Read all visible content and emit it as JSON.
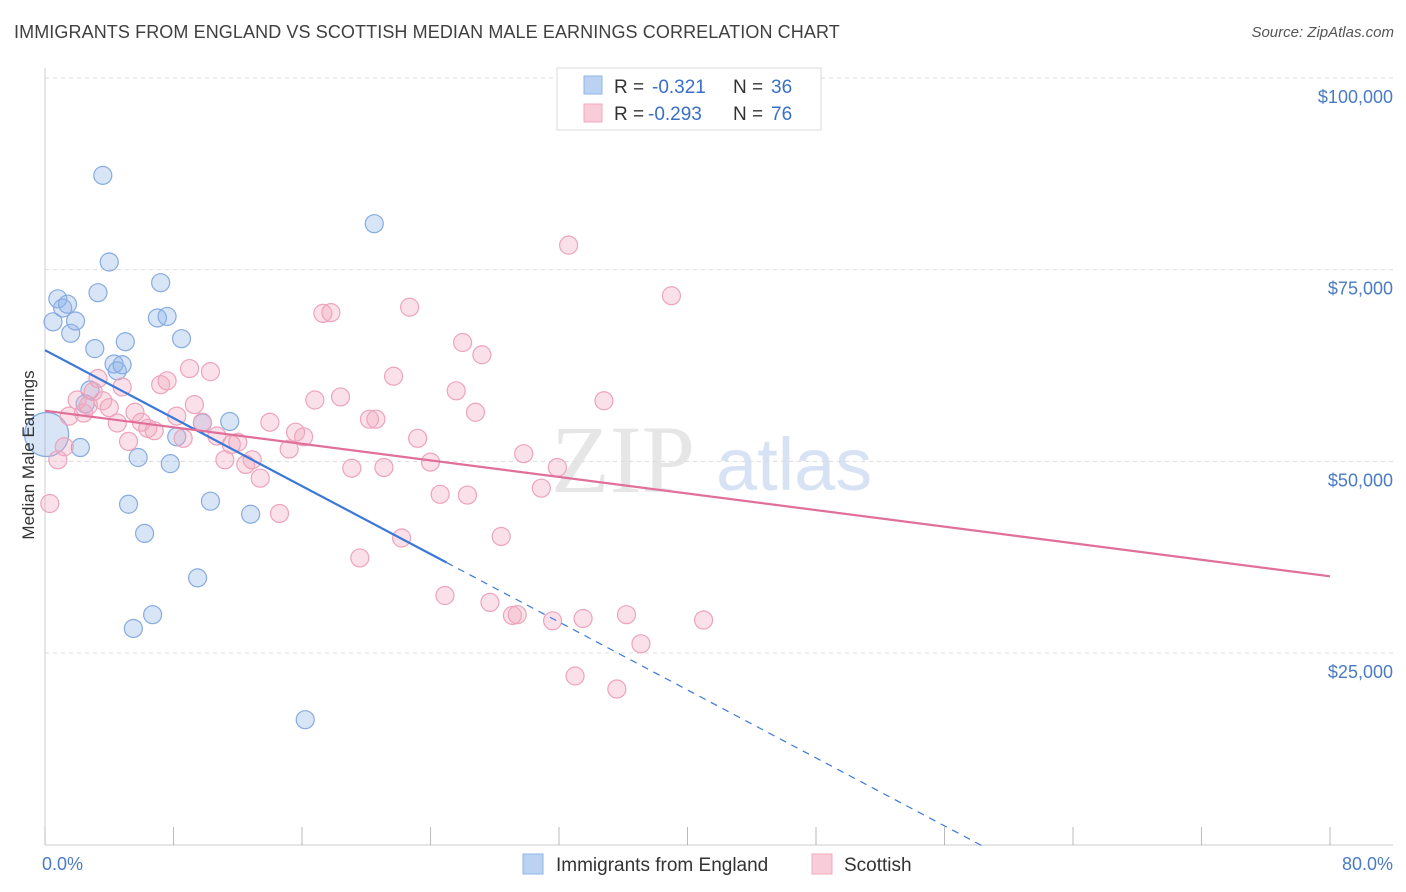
{
  "title": "IMMIGRANTS FROM ENGLAND VS SCOTTISH MEDIAN MALE EARNINGS CORRELATION CHART",
  "source": "Source: ZipAtlas.com",
  "watermark": {
    "zip": "ZIP",
    "atlas": "atlas"
  },
  "colors": {
    "blue": "#8fb4e8",
    "blue_line": "#3b78d8",
    "pink": "#f2a8bf",
    "pink_line": "#e0709a"
  },
  "legend": {
    "rows": [
      {
        "r_label": "R =",
        "r_value": "-0.321",
        "n_label": "N =",
        "n_value": "36"
      },
      {
        "r_label": "R =",
        "r_value": "-0.293",
        "n_label": "N =",
        "n_value": "76"
      }
    ]
  },
  "chart_data": {
    "type": "scatter",
    "title": "IMMIGRANTS FROM ENGLAND VS SCOTTISH MEDIAN MALE EARNINGS CORRELATION CHART",
    "xlabel": "",
    "ylabel": "Median Male Earnings",
    "xlim": [
      0,
      80
    ],
    "ylim": [
      0,
      105000
    ],
    "x_tick_labels": [
      "0.0%",
      "80.0%"
    ],
    "y_ticks": [
      {
        "value": 25000,
        "label": "$25,000"
      },
      {
        "value": 50000,
        "label": "$50,000"
      },
      {
        "value": 75000,
        "label": "$75,000"
      },
      {
        "value": 100000,
        "label": "$100,000"
      }
    ],
    "series": [
      {
        "name": "Immigrants from England",
        "color": "#8fb4e8",
        "trend": {
          "x0": 0,
          "y0": 64500,
          "x1": 25,
          "y1": 36800,
          "dash_to_x": 58.5
        },
        "points": [
          [
            0.1,
            53500
          ],
          [
            0.5,
            68200
          ],
          [
            0.8,
            71200
          ],
          [
            1.1,
            70000
          ],
          [
            1.4,
            70500
          ],
          [
            1.6,
            66700
          ],
          [
            1.9,
            68300
          ],
          [
            2.2,
            51800
          ],
          [
            2.5,
            57500
          ],
          [
            2.8,
            59300
          ],
          [
            3.1,
            64700
          ],
          [
            3.3,
            72000
          ],
          [
            3.6,
            87300
          ],
          [
            4.0,
            76000
          ],
          [
            4.3,
            62700
          ],
          [
            4.5,
            61800
          ],
          [
            4.8,
            62600
          ],
          [
            5.0,
            65600
          ],
          [
            5.2,
            44400
          ],
          [
            5.5,
            28200
          ],
          [
            5.8,
            50500
          ],
          [
            6.2,
            40600
          ],
          [
            6.7,
            30000
          ],
          [
            7.0,
            68700
          ],
          [
            7.2,
            73300
          ],
          [
            7.6,
            68900
          ],
          [
            7.8,
            49700
          ],
          [
            8.2,
            53200
          ],
          [
            8.5,
            66000
          ],
          [
            9.5,
            34800
          ],
          [
            9.8,
            55000
          ],
          [
            10.3,
            44800
          ],
          [
            11.5,
            55200
          ],
          [
            12.8,
            43100
          ],
          [
            16.2,
            16300
          ],
          [
            20.5,
            81000
          ]
        ]
      },
      {
        "name": "Scottish",
        "color": "#f2a8bf",
        "trend": {
          "x0": 0,
          "y0": 56600,
          "x1": 80,
          "y1": 35000
        },
        "points": [
          [
            0.3,
            44500
          ],
          [
            0.8,
            50200
          ],
          [
            1.2,
            51900
          ],
          [
            1.5,
            55900
          ],
          [
            2.0,
            58000
          ],
          [
            2.4,
            56300
          ],
          [
            2.7,
            57300
          ],
          [
            3.0,
            59100
          ],
          [
            3.3,
            60800
          ],
          [
            3.6,
            57900
          ],
          [
            4.0,
            57000
          ],
          [
            4.5,
            55000
          ],
          [
            4.8,
            59700
          ],
          [
            5.2,
            52600
          ],
          [
            5.6,
            56400
          ],
          [
            6.0,
            55100
          ],
          [
            6.4,
            54300
          ],
          [
            6.8,
            54000
          ],
          [
            7.2,
            60000
          ],
          [
            7.6,
            60500
          ],
          [
            8.2,
            55900
          ],
          [
            8.6,
            53000
          ],
          [
            9.0,
            62100
          ],
          [
            9.3,
            57400
          ],
          [
            9.8,
            55100
          ],
          [
            10.3,
            61700
          ],
          [
            10.7,
            53300
          ],
          [
            11.2,
            50200
          ],
          [
            11.6,
            52200
          ],
          [
            12.0,
            52500
          ],
          [
            12.5,
            49600
          ],
          [
            12.9,
            50200
          ],
          [
            13.4,
            47800
          ],
          [
            14.0,
            55100
          ],
          [
            14.6,
            43200
          ],
          [
            15.2,
            51600
          ],
          [
            15.6,
            53800
          ],
          [
            16.1,
            53200
          ],
          [
            16.8,
            58000
          ],
          [
            17.3,
            69300
          ],
          [
            17.8,
            69400
          ],
          [
            18.4,
            58400
          ],
          [
            19.1,
            49100
          ],
          [
            19.6,
            37400
          ],
          [
            20.2,
            55500
          ],
          [
            20.6,
            55500
          ],
          [
            21.1,
            49200
          ],
          [
            21.7,
            61100
          ],
          [
            22.2,
            40000
          ],
          [
            22.7,
            70100
          ],
          [
            23.2,
            53000
          ],
          [
            24.0,
            49900
          ],
          [
            24.6,
            45700
          ],
          [
            24.9,
            32500
          ],
          [
            25.6,
            59200
          ],
          [
            26.0,
            65500
          ],
          [
            26.3,
            45600
          ],
          [
            26.8,
            56400
          ],
          [
            27.2,
            63900
          ],
          [
            27.7,
            31600
          ],
          [
            28.4,
            40200
          ],
          [
            29.1,
            29900
          ],
          [
            29.4,
            30000
          ],
          [
            29.8,
            51000
          ],
          [
            30.9,
            46500
          ],
          [
            31.6,
            29200
          ],
          [
            31.9,
            49200
          ],
          [
            32.6,
            78200
          ],
          [
            33.0,
            22000
          ],
          [
            33.5,
            29500
          ],
          [
            34.8,
            57900
          ],
          [
            35.6,
            20300
          ],
          [
            36.2,
            30000
          ],
          [
            37.1,
            26200
          ],
          [
            39.0,
            71600
          ],
          [
            41.0,
            29300
          ]
        ]
      }
    ],
    "extra_points_note": "",
    "legend_position": "top-center"
  },
  "bottom_legend": [
    "Immigrants from England",
    "Scottish"
  ]
}
